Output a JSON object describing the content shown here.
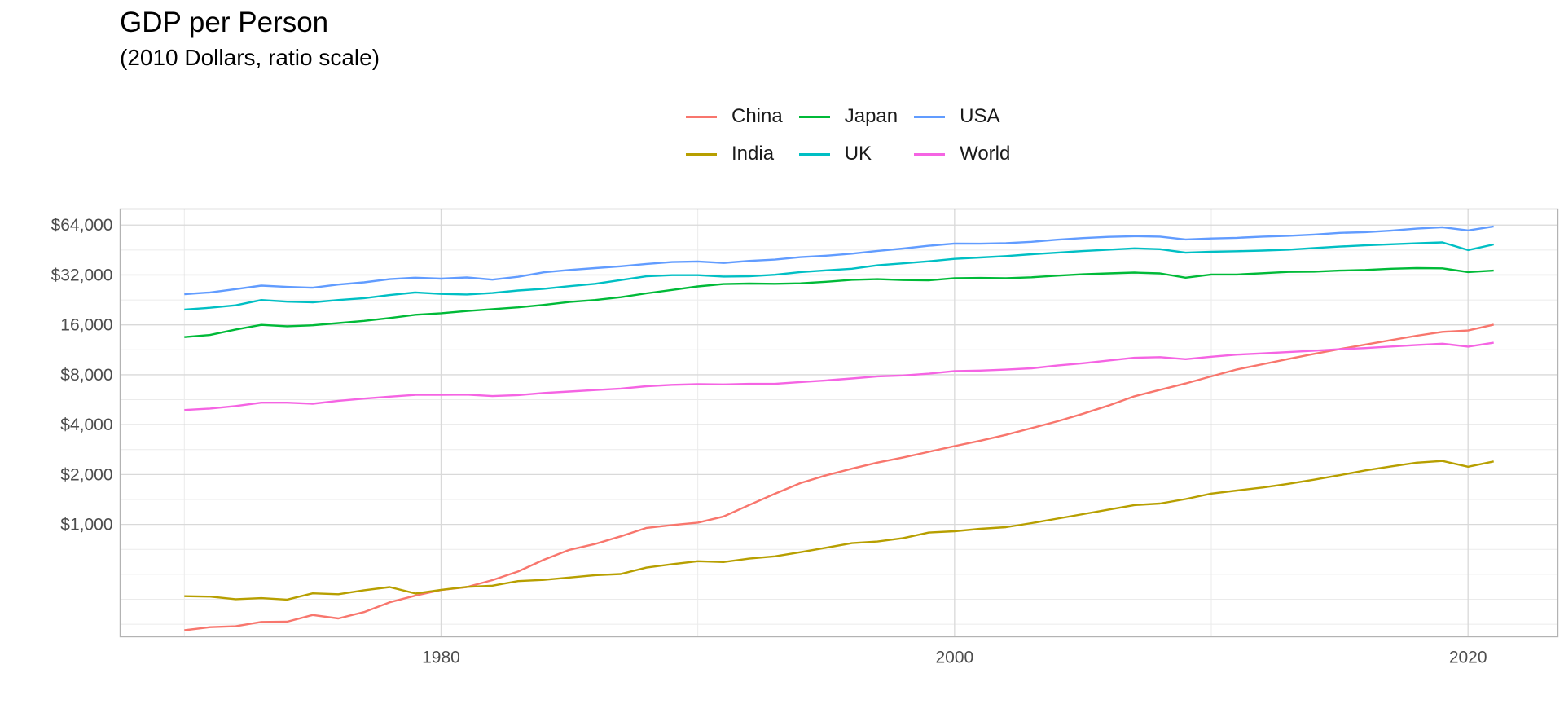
{
  "chart_data": {
    "type": "line",
    "title": "GDP per Person",
    "subtitle": "(2010 Dollars, ratio scale)",
    "xlabel": "",
    "ylabel": "",
    "y_scale": "log2",
    "xlim": [
      1967.5,
      2023.5
    ],
    "ylim": [
      210,
      80000
    ],
    "x_ticks": [
      1980,
      2000,
      2020
    ],
    "x_tick_labels": [
      "1980",
      "2000",
      "2020"
    ],
    "y_ticks": [
      1000,
      2000,
      4000,
      8000,
      16000,
      32000,
      64000
    ],
    "y_tick_labels": [
      "$1,000",
      "$2,000",
      "$4,000",
      "$8,000",
      "16,000",
      "$32,000",
      "$64,000"
    ],
    "grid": true,
    "legend_position": "top",
    "x": [
      1970,
      1971,
      1972,
      1973,
      1974,
      1975,
      1976,
      1977,
      1978,
      1979,
      1980,
      1981,
      1982,
      1983,
      1984,
      1985,
      1986,
      1987,
      1988,
      1989,
      1990,
      1991,
      1992,
      1993,
      1994,
      1995,
      1996,
      1997,
      1998,
      1999,
      2000,
      2001,
      2002,
      2003,
      2004,
      2005,
      2006,
      2007,
      2008,
      2009,
      2010,
      2011,
      2012,
      2013,
      2014,
      2015,
      2016,
      2017,
      2018,
      2019,
      2020,
      2021
    ],
    "series": [
      {
        "name": "China",
        "color": "#F8766D",
        "values": [
          230,
          240,
          243,
          258,
          259,
          284,
          271,
          296,
          339,
          372,
          402,
          419,
          461,
          520,
          612,
          703,
          762,
          848,
          953,
          991,
          1025,
          1117,
          1309,
          1531,
          1776,
          1980,
          2169,
          2363,
          2537,
          2742,
          2967,
          3199,
          3472,
          3811,
          4186,
          4651,
          5216,
          5929,
          6490,
          7087,
          7827,
          8611,
          9261,
          9958,
          10689,
          11424,
          12166,
          12941,
          13768,
          14510,
          14795,
          16058
        ]
      },
      {
        "name": "India",
        "color": "#B79F00",
        "values": [
          369,
          367,
          354,
          359,
          352,
          384,
          379,
          401,
          419,
          383,
          403,
          420,
          427,
          455,
          463,
          478,
          494,
          502,
          549,
          576,
          600,
          593,
          622,
          642,
          680,
          724,
          771,
          789,
          827,
          893,
          910,
          941,
          963,
          1019,
          1084,
          1154,
          1229,
          1308,
          1336,
          1422,
          1534,
          1601,
          1670,
          1757,
          1862,
          1982,
          2119,
          2239,
          2358,
          2415,
          2230,
          2400
        ]
      },
      {
        "name": "Japan",
        "color": "#00BA38",
        "values": [
          13500,
          13900,
          15000,
          16000,
          15700,
          15900,
          16400,
          16900,
          17600,
          18400,
          18800,
          19400,
          19900,
          20400,
          21100,
          22000,
          22600,
          23500,
          24800,
          26000,
          27300,
          28200,
          28400,
          28300,
          28500,
          29100,
          29900,
          30200,
          29800,
          29700,
          30600,
          30700,
          30600,
          31000,
          31700,
          32300,
          32700,
          33100,
          32700,
          30800,
          32200,
          32200,
          32800,
          33400,
          33500,
          34000,
          34300,
          34900,
          35200,
          35100,
          33300,
          34000
        ]
      },
      {
        "name": "UK",
        "color": "#00BFC4",
        "values": [
          19800,
          20300,
          21000,
          22600,
          22100,
          21900,
          22600,
          23200,
          24200,
          25100,
          24600,
          24400,
          24900,
          25800,
          26400,
          27400,
          28300,
          29800,
          31400,
          31900,
          31900,
          31300,
          31400,
          32100,
          33300,
          34100,
          34900,
          36600,
          37600,
          38700,
          40000,
          40800,
          41600,
          42700,
          43600,
          44600,
          45500,
          46300,
          45800,
          43600,
          44200,
          44500,
          44900,
          45500,
          46500,
          47500,
          48300,
          49000,
          49700,
          50300,
          45200,
          48900
        ]
      },
      {
        "name": "USA",
        "color": "#619CFF",
        "values": [
          24500,
          25100,
          26300,
          27600,
          27100,
          26800,
          28000,
          28900,
          30200,
          30800,
          30400,
          30900,
          30000,
          31200,
          33200,
          34300,
          35200,
          36100,
          37300,
          38300,
          38600,
          37800,
          38900,
          39600,
          41000,
          41800,
          43000,
          44700,
          46200,
          48000,
          49500,
          49400,
          49800,
          50700,
          52200,
          53400,
          54300,
          54800,
          54500,
          52400,
          53100,
          53600,
          54500,
          55100,
          56100,
          57400,
          58000,
          59200,
          60900,
          62100,
          59400,
          62800
        ]
      },
      {
        "name": "World",
        "color": "#F564E3",
        "values": [
          4900,
          5000,
          5180,
          5430,
          5430,
          5350,
          5570,
          5740,
          5900,
          6050,
          6050,
          6070,
          5950,
          6030,
          6210,
          6340,
          6470,
          6600,
          6820,
          6950,
          7020,
          6990,
          7050,
          7050,
          7230,
          7390,
          7600,
          7820,
          7920,
          8120,
          8420,
          8480,
          8590,
          8750,
          9090,
          9390,
          9760,
          10130,
          10220,
          9930,
          10280,
          10580,
          10770,
          10960,
          11180,
          11400,
          11580,
          11840,
          12100,
          12320,
          11830,
          12490
        ]
      }
    ]
  }
}
